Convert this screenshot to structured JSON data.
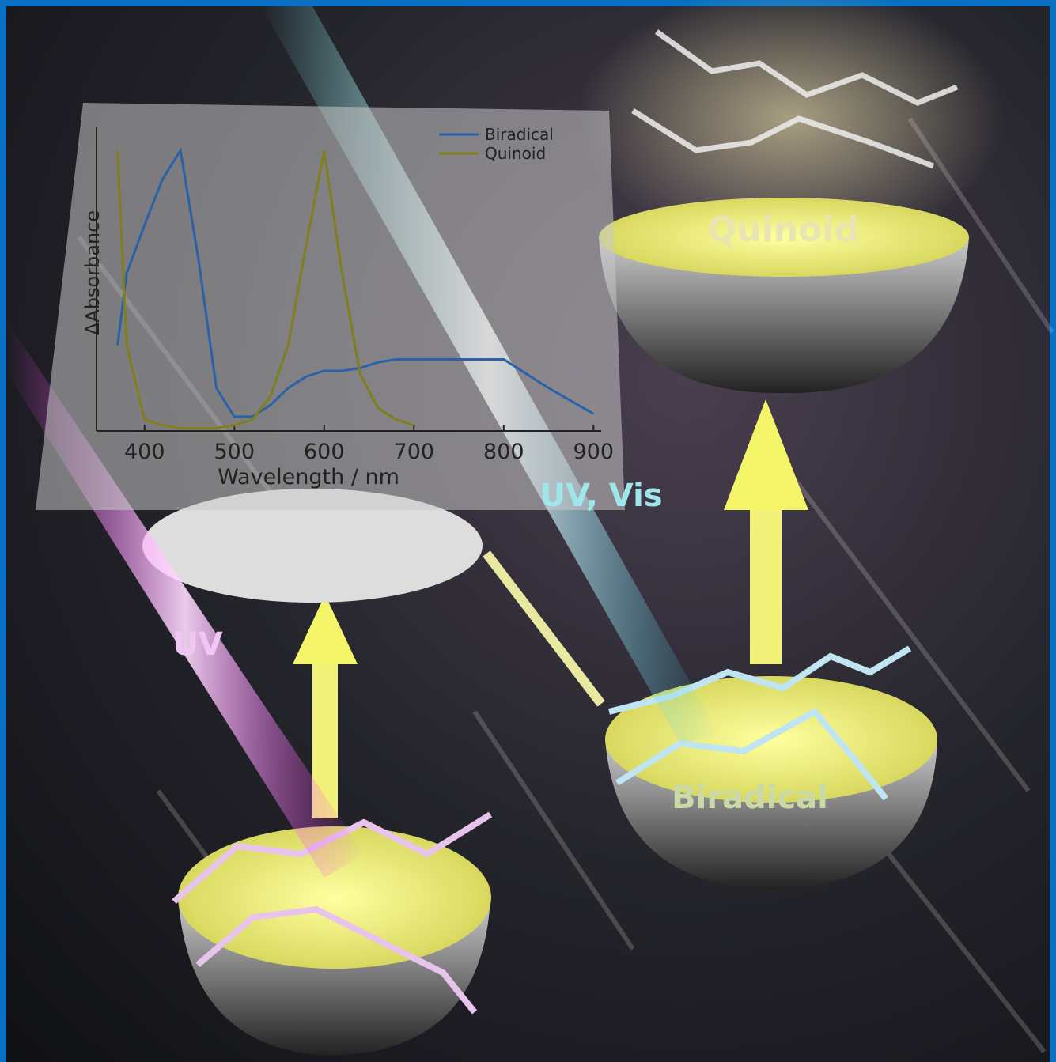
{
  "chart_data": {
    "type": "line",
    "x_label": "Wavelength / nm",
    "y_label": "ΔAbsorbance",
    "x": [
      370,
      380,
      400,
      420,
      440,
      460,
      480,
      500,
      520,
      540,
      560,
      580,
      600,
      620,
      640,
      660,
      680,
      700,
      750,
      800,
      850,
      900
    ],
    "series": [
      {
        "name": "Biradical",
        "color": "#2a62a8",
        "values": [
          0.3,
          0.55,
          0.72,
          0.88,
          0.98,
          0.6,
          0.15,
          0.05,
          0.05,
          0.09,
          0.15,
          0.19,
          0.21,
          0.21,
          0.22,
          0.24,
          0.25,
          0.25,
          0.25,
          0.25,
          0.15,
          0.06
        ]
      },
      {
        "name": "Quinoid",
        "color": "#7f7f1c",
        "values": [
          0.98,
          0.3,
          0.04,
          0.02,
          0.01,
          0.01,
          0.01,
          0.02,
          0.04,
          0.12,
          0.3,
          0.65,
          0.98,
          0.55,
          0.2,
          0.08,
          0.04,
          0.02,
          null,
          null,
          null,
          null
        ]
      }
    ],
    "xlim": [
      350,
      905
    ],
    "xticks": [
      400,
      500,
      600,
      700,
      800,
      900
    ],
    "ylim": [
      0,
      1.05
    ],
    "legend": "upper right"
  },
  "labels": {
    "quinoid": "Quinoid",
    "biradical": "Biradical",
    "uv": "UV",
    "uv_vis": "UV, Vis"
  }
}
